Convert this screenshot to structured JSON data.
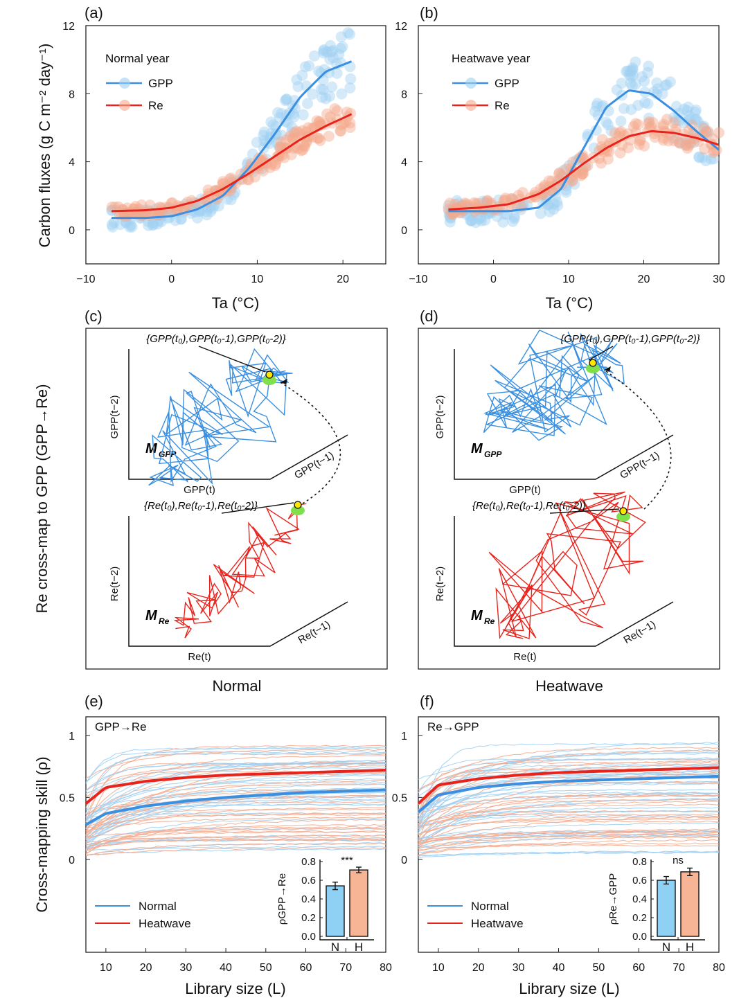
{
  "colors": {
    "gpp": "#3a8fe0",
    "re": "#e8231c",
    "gpp_light": "#9fd0f2",
    "re_light": "#f5a98c",
    "bar_n": "#8fd0f5",
    "bar_h": "#f8b596",
    "highlight": "#7ee04a",
    "point": "#ffe600"
  },
  "labels": {
    "a": "(a)",
    "b": "(b)",
    "c": "(c)",
    "d": "(d)",
    "e": "(e)",
    "f": "(f)",
    "ylab_top": "Carbon fluxes (g C m⁻² day⁻¹)",
    "ylab_mid": "Re cross-map to GPP (GPP→Re)",
    "ylab_bot": "Cross-mapping skill (ρ)",
    "xlab_ta": "Ta (°C)",
    "xlab_lib": "Library size (L)",
    "normal": "Normal",
    "heatwave": "Heatwave"
  },
  "chart_data": [
    {
      "panel": "a",
      "type": "scatter",
      "title": "Normal year",
      "xlabel": "Ta (°C)",
      "ylabel": "Carbon fluxes (g C m⁻² day⁻¹)",
      "xlim": [
        -10,
        25
      ],
      "ylim": [
        -2,
        12
      ],
      "xticks": [
        -10,
        0,
        10,
        20
      ],
      "yticks": [
        0,
        4,
        8,
        12
      ],
      "series": [
        {
          "name": "GPP",
          "fit_x": [
            -7,
            -3,
            0,
            3,
            6,
            9,
            12,
            15,
            18,
            21
          ],
          "fit_y": [
            0.7,
            0.7,
            0.8,
            1.2,
            2.0,
            3.6,
            5.6,
            7.8,
            9.3,
            9.9
          ]
        },
        {
          "name": "Re",
          "fit_x": [
            -7,
            -3,
            0,
            3,
            6,
            9,
            12,
            15,
            18,
            21
          ],
          "fit_y": [
            1.1,
            1.15,
            1.3,
            1.7,
            2.4,
            3.3,
            4.3,
            5.3,
            6.1,
            6.8
          ]
        }
      ]
    },
    {
      "panel": "b",
      "type": "scatter",
      "title": "Heatwave year",
      "xlabel": "Ta (°C)",
      "xlim": [
        -10,
        30
      ],
      "ylim": [
        -2,
        12
      ],
      "xticks": [
        -10,
        0,
        10,
        20,
        30
      ],
      "yticks": [
        0,
        4,
        8,
        12
      ],
      "series": [
        {
          "name": "GPP",
          "fit_x": [
            -6,
            -2,
            2,
            6,
            9,
            12,
            15,
            18,
            21,
            24,
            27,
            30
          ],
          "fit_y": [
            1.1,
            1.1,
            1.1,
            1.3,
            2.4,
            4.8,
            7.2,
            8.2,
            8.0,
            7.0,
            5.8,
            4.7
          ]
        },
        {
          "name": "Re",
          "fit_x": [
            -6,
            -2,
            2,
            6,
            9,
            12,
            15,
            18,
            21,
            24,
            27,
            30
          ],
          "fit_y": [
            1.2,
            1.3,
            1.5,
            2.1,
            2.9,
            3.9,
            4.8,
            5.5,
            5.8,
            5.7,
            5.4,
            5.0
          ]
        }
      ]
    },
    {
      "panel": "e",
      "type": "line",
      "title": "GPP→Re",
      "xlabel": "Library size (L)",
      "ylabel": "Cross-mapping skill (ρ)",
      "xlim": [
        5,
        80
      ],
      "ylim": [
        -0.75,
        1.15
      ],
      "xticks": [
        10,
        20,
        30,
        40,
        50,
        60,
        70,
        80
      ],
      "yticks": [
        0,
        0.5,
        1
      ],
      "series": [
        {
          "name": "Normal",
          "x": [
            5,
            10,
            20,
            30,
            40,
            50,
            60,
            70,
            80
          ],
          "y": [
            0.28,
            0.37,
            0.43,
            0.47,
            0.5,
            0.52,
            0.54,
            0.55,
            0.56
          ]
        },
        {
          "name": "Heatwave",
          "x": [
            5,
            10,
            20,
            30,
            40,
            50,
            60,
            70,
            80
          ],
          "y": [
            0.45,
            0.58,
            0.63,
            0.66,
            0.68,
            0.69,
            0.7,
            0.71,
            0.72
          ]
        }
      ],
      "inset": {
        "type": "bar",
        "ylabel": "ρGPP→Re",
        "categories": [
          "N",
          "H"
        ],
        "values": [
          0.54,
          0.71
        ],
        "errors": [
          0.04,
          0.03
        ],
        "yticks": [
          "0.0",
          "0.2",
          "0.4",
          "0.6",
          "0.8"
        ],
        "significance": "***"
      }
    },
    {
      "panel": "f",
      "type": "line",
      "title": "Re→GPP",
      "xlabel": "Library size (L)",
      "xlim": [
        5,
        80
      ],
      "ylim": [
        -0.75,
        1.15
      ],
      "xticks": [
        10,
        20,
        30,
        40,
        50,
        60,
        70,
        80
      ],
      "yticks": [
        0,
        0.5,
        1
      ],
      "series": [
        {
          "name": "Normal",
          "x": [
            5,
            10,
            20,
            30,
            40,
            50,
            60,
            70,
            80
          ],
          "y": [
            0.38,
            0.52,
            0.58,
            0.61,
            0.63,
            0.64,
            0.65,
            0.66,
            0.67
          ]
        },
        {
          "name": "Heatwave",
          "x": [
            5,
            10,
            20,
            30,
            40,
            50,
            60,
            70,
            80
          ],
          "y": [
            0.45,
            0.6,
            0.65,
            0.68,
            0.7,
            0.71,
            0.72,
            0.73,
            0.74
          ]
        }
      ],
      "inset": {
        "type": "bar",
        "ylabel": "ρRe→GPP",
        "categories": [
          "N",
          "H"
        ],
        "values": [
          0.6,
          0.69
        ],
        "errors": [
          0.04,
          0.04
        ],
        "yticks": [
          "0.0",
          "0.2",
          "0.4",
          "0.6",
          "0.8"
        ],
        "significance": "ns"
      }
    }
  ],
  "diagram": {
    "gpp_point": "{GPP(t₀),GPP(t₀-1),GPP(t₀-2)}",
    "re_point": "{Re(t₀),Re(t₀-1),Re(t₀-2)}",
    "gpp_axes": [
      "GPP(t)",
      "GPP(t−1)",
      "GPP(t−2)"
    ],
    "re_axes": [
      "Re(t)",
      "Re(t−1)",
      "Re(t−2)"
    ],
    "m_gpp": "M",
    "m_gpp_sub": "GPP",
    "m_re": "M",
    "m_re_sub": "Re"
  }
}
